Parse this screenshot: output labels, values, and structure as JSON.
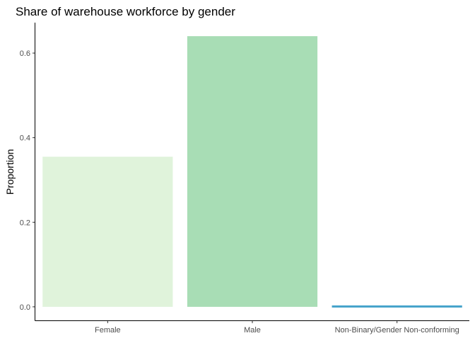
{
  "chart_data": {
    "type": "bar",
    "title": "Share of warehouse workforce by gender",
    "xlabel": "",
    "ylabel": "Proportion",
    "categories": [
      "Female",
      "Male",
      "Non-Binary/Gender Non-conforming"
    ],
    "values": [
      0.355,
      0.64,
      0.005
    ],
    "ylim": [
      -0.032,
      0.672
    ],
    "yticks": [
      0.0,
      0.2,
      0.4,
      0.6
    ],
    "ytick_labels": [
      "0.0",
      "0.2",
      "0.4",
      "0.6"
    ],
    "colors": [
      "#e0f3db",
      "#a8ddb5",
      "#43a2ca"
    ],
    "grid": false,
    "legend": "none"
  }
}
